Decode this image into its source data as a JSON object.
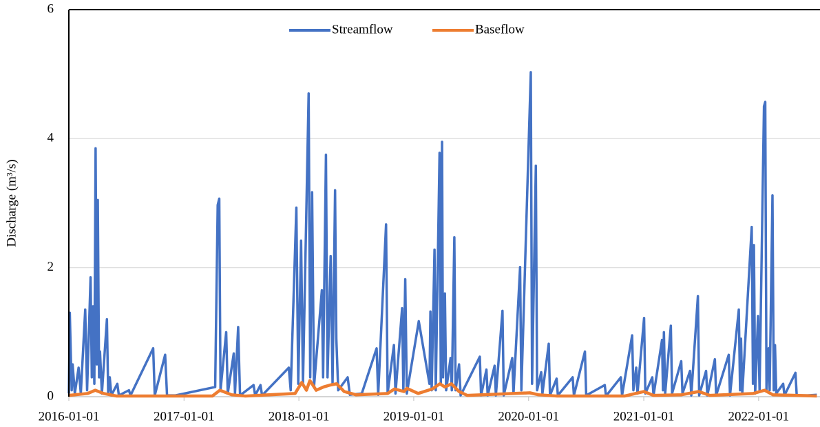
{
  "chart_data": {
    "type": "line",
    "y_label": "Discharge (m³/s)",
    "ylim": [
      0,
      6
    ],
    "yticks": [
      0,
      2,
      4,
      6
    ],
    "xlim": [
      "2016-01-01",
      "2022-07-15"
    ],
    "xticks": [
      "2016-01-01",
      "2017-01-01",
      "2018-01-01",
      "2019-01-01",
      "2020-01-01",
      "2021-01-01",
      "2022-01-01"
    ],
    "grid": true,
    "legend": "top",
    "series": [
      {
        "name": "Streamflow",
        "color": "#4472c4",
        "x": [
          "2016-01-01",
          "2016-01-04",
          "2016-01-10",
          "2016-01-13",
          "2016-01-20",
          "2016-02-01",
          "2016-02-08",
          "2016-02-22",
          "2016-02-28",
          "2016-03-10",
          "2016-03-14",
          "2016-03-18",
          "2016-03-22",
          "2016-03-26",
          "2016-03-30",
          "2016-04-02",
          "2016-04-06",
          "2016-04-09",
          "2016-04-15",
          "2016-05-01",
          "2016-05-05",
          "2016-05-10",
          "2016-05-15",
          "2016-06-03",
          "2016-06-08",
          "2016-07-10",
          "2016-07-15",
          "2016-09-25",
          "2016-09-30",
          "2016-11-02",
          "2016-11-08",
          "2016-12-05",
          "2017-04-10",
          "2017-04-18",
          "2017-04-23",
          "2017-04-27",
          "2017-05-15",
          "2017-05-20",
          "2017-06-08",
          "2017-06-12",
          "2017-06-22",
          "2017-06-28",
          "2017-08-10",
          "2017-08-15",
          "2017-09-01",
          "2017-09-06",
          "2017-11-30",
          "2017-12-06",
          "2017-12-24",
          "2017-12-30",
          "2018-01-08",
          "2018-01-14",
          "2018-02-01",
          "2018-02-06",
          "2018-02-12",
          "2018-02-18",
          "2018-03-15",
          "2018-03-19",
          "2018-03-28",
          "2018-04-02",
          "2018-04-12",
          "2018-04-18",
          "2018-04-26",
          "2018-04-30",
          "2018-05-06",
          "2018-06-05",
          "2018-06-12",
          "2018-07-20",
          "2018-09-05",
          "2018-09-10",
          "2018-10-05",
          "2018-10-10",
          "2018-10-30",
          "2018-11-04",
          "2018-11-25",
          "2018-11-29",
          "2018-12-05",
          "2018-12-10",
          "2019-01-17",
          "2019-02-20",
          "2019-02-23",
          "2019-02-27",
          "2019-03-08",
          "2019-03-12",
          "2019-03-24",
          "2019-03-28",
          "2019-04-01",
          "2019-04-04",
          "2019-04-10",
          "2019-04-14",
          "2019-04-28",
          "2019-05-02",
          "2019-05-10",
          "2019-05-14",
          "2019-05-25",
          "2019-05-30",
          "2019-07-30",
          "2019-08-03",
          "2019-08-20",
          "2019-08-24",
          "2019-09-15",
          "2019-09-19",
          "2019-10-10",
          "2019-10-14",
          "2019-11-10",
          "2019-11-14",
          "2019-12-05",
          "2019-12-09",
          "2020-01-08",
          "2020-01-12",
          "2020-01-24",
          "2020-01-28",
          "2020-02-10",
          "2020-02-14",
          "2020-03-05",
          "2020-03-09",
          "2020-03-30",
          "2020-04-03",
          "2020-05-20",
          "2020-05-24",
          "2020-06-28",
          "2020-07-02",
          "2020-08-30",
          "2020-09-03",
          "2020-10-20",
          "2020-10-24",
          "2020-11-25",
          "2020-11-29",
          "2020-12-08",
          "2020-12-12",
          "2021-01-02",
          "2021-01-06",
          "2021-01-28",
          "2021-02-01",
          "2021-02-28",
          "2021-03-03",
          "2021-03-06",
          "2021-03-10",
          "2021-03-28",
          "2021-04-01",
          "2021-04-30",
          "2021-05-04",
          "2021-05-28",
          "2021-06-01",
          "2021-06-22",
          "2021-06-26",
          "2021-07-18",
          "2021-07-22",
          "2021-08-15",
          "2021-08-19",
          "2021-09-28",
          "2021-10-02",
          "2021-10-30",
          "2021-11-03",
          "2021-11-06",
          "2021-11-10",
          "2021-12-10",
          "2021-12-14",
          "2021-12-17",
          "2021-12-21",
          "2021-12-30",
          "2022-01-04",
          "2022-01-18",
          "2022-01-22",
          "2022-01-26",
          "2022-02-02",
          "2022-02-05",
          "2022-02-14",
          "2022-02-18",
          "2022-02-22",
          "2022-02-26",
          "2022-03-20",
          "2022-03-24",
          "2022-04-28",
          "2022-05-02",
          "2022-06-05",
          "2022-07-05"
        ],
        "values": [
          0.05,
          1.3,
          0.1,
          0.5,
          0.05,
          0.45,
          0.05,
          1.35,
          0.1,
          1.85,
          0.3,
          1.4,
          0.2,
          3.85,
          0.5,
          3.05,
          0.3,
          0.7,
          0.05,
          1.2,
          0.05,
          0.3,
          0.02,
          0.2,
          0.02,
          0.1,
          0.02,
          0.75,
          0.02,
          0.65,
          0.02,
          0.02,
          0.15,
          2.97,
          3.07,
          0.1,
          1.0,
          0.05,
          0.67,
          0.05,
          1.08,
          0.02,
          0.18,
          0.02,
          0.18,
          0.02,
          0.45,
          0.1,
          2.93,
          0.2,
          2.42,
          0.2,
          4.7,
          0.3,
          3.17,
          0.15,
          1.65,
          0.3,
          3.75,
          0.3,
          2.18,
          0.2,
          3.2,
          0.9,
          0.1,
          0.3,
          0.03,
          0.05,
          0.75,
          0.03,
          2.67,
          0.05,
          0.8,
          0.05,
          1.37,
          0.1,
          1.82,
          0.05,
          1.17,
          0.2,
          1.32,
          0.1,
          2.28,
          0.1,
          3.78,
          0.2,
          3.95,
          0.3,
          1.6,
          0.1,
          0.6,
          0.1,
          2.47,
          0.1,
          0.5,
          0.02,
          0.62,
          0.02,
          0.42,
          0.02,
          0.48,
          0.02,
          1.33,
          0.02,
          0.6,
          0.05,
          2.01,
          0.1,
          5.03,
          0.2,
          3.58,
          0.1,
          0.38,
          0.05,
          0.82,
          0.02,
          0.28,
          0.02,
          0.3,
          0.02,
          0.7,
          0.02,
          0.18,
          0.01,
          0.3,
          0.02,
          0.95,
          0.1,
          0.45,
          0.05,
          1.22,
          0.05,
          0.3,
          0.02,
          0.88,
          0.1,
          1.0,
          0.05,
          1.1,
          0.05,
          0.55,
          0.05,
          0.4,
          0.02,
          1.56,
          0.02,
          0.4,
          0.02,
          0.58,
          0.02,
          0.65,
          0.02,
          1.35,
          0.1,
          0.9,
          0.05,
          2.63,
          0.2,
          2.35,
          0.05,
          1.25,
          0.1,
          4.5,
          4.57,
          0.1,
          0.75,
          0.1,
          3.12,
          0.1,
          0.8,
          0.05,
          0.2,
          0.02,
          0.37,
          0.02,
          0.02,
          0.03
        ]
      },
      {
        "name": "Baseflow",
        "color": "#ed7d31",
        "x": [
          "2016-01-01",
          "2016-03-01",
          "2016-03-25",
          "2016-04-20",
          "2016-06-01",
          "2017-04-01",
          "2017-04-25",
          "2017-06-01",
          "2017-07-15",
          "2017-12-20",
          "2018-01-10",
          "2018-01-25",
          "2018-02-05",
          "2018-02-25",
          "2018-03-20",
          "2018-04-10",
          "2018-05-01",
          "2018-05-25",
          "2018-07-01",
          "2018-10-10",
          "2018-11-01",
          "2018-12-01",
          "2018-12-10",
          "2019-01-15",
          "2019-03-01",
          "2019-03-25",
          "2019-04-10",
          "2019-05-01",
          "2019-05-25",
          "2019-06-20",
          "2020-01-05",
          "2020-02-01",
          "2020-04-01",
          "2020-11-01",
          "2021-01-01",
          "2021-02-01",
          "2021-05-01",
          "2021-06-25",
          "2021-07-30",
          "2021-12-15",
          "2022-01-20",
          "2022-02-15",
          "2022-07-05"
        ],
        "values": [
          0.02,
          0.05,
          0.1,
          0.05,
          0.01,
          0.01,
          0.1,
          0.03,
          0.01,
          0.05,
          0.22,
          0.1,
          0.25,
          0.1,
          0.15,
          0.18,
          0.2,
          0.08,
          0.03,
          0.05,
          0.12,
          0.08,
          0.13,
          0.05,
          0.12,
          0.2,
          0.15,
          0.2,
          0.08,
          0.02,
          0.06,
          0.03,
          0.01,
          0.01,
          0.08,
          0.02,
          0.03,
          0.08,
          0.02,
          0.05,
          0.1,
          0.03,
          0.01
        ]
      }
    ]
  }
}
